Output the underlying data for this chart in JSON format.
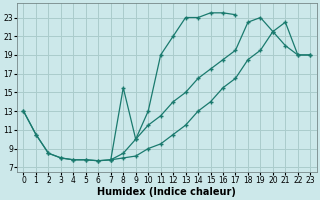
{
  "xlabel": "Humidex (Indice chaleur)",
  "bg_color": "#cce8ea",
  "grid_color": "#aacccc",
  "line_color": "#1a7a6e",
  "xlim": [
    -0.5,
    23.5
  ],
  "ylim": [
    6.5,
    24.5
  ],
  "xticks": [
    0,
    1,
    2,
    3,
    4,
    5,
    6,
    7,
    8,
    9,
    10,
    11,
    12,
    13,
    14,
    15,
    16,
    17,
    18,
    19,
    20,
    21,
    22,
    23
  ],
  "yticks": [
    7,
    9,
    11,
    13,
    15,
    17,
    19,
    21,
    23
  ],
  "line1_x": [
    0,
    1,
    2,
    3,
    4,
    5,
    6,
    7,
    8,
    9,
    10,
    11,
    12,
    13,
    14,
    15,
    16,
    17
  ],
  "line1_y": [
    13,
    10.5,
    8.5,
    8.0,
    7.8,
    7.8,
    7.7,
    7.8,
    8.5,
    10.0,
    13.0,
    19.0,
    21.0,
    23.0,
    23.0,
    23.5,
    23.5,
    23.3
  ],
  "line2_x": [
    0,
    1,
    2,
    3,
    4,
    5,
    6,
    7,
    8,
    9,
    10,
    11,
    12,
    13,
    14,
    15,
    16,
    17,
    18,
    19,
    20,
    21,
    22,
    23
  ],
  "line2_y": [
    13,
    10.5,
    8.5,
    8.0,
    7.8,
    7.8,
    7.7,
    7.8,
    8.0,
    8.2,
    9.0,
    9.5,
    10.5,
    11.5,
    13.0,
    14.0,
    15.5,
    16.5,
    18.5,
    19.5,
    21.5,
    22.5,
    19.0,
    19.0
  ],
  "line3_x": [
    7,
    8,
    9,
    10,
    11,
    12,
    13,
    14,
    15,
    16,
    17,
    18,
    19,
    20,
    21,
    22,
    23
  ],
  "line3_y": [
    7.8,
    15.5,
    10.0,
    11.5,
    12.5,
    14.0,
    15.0,
    16.5,
    17.5,
    18.5,
    19.5,
    22.5,
    23.0,
    21.5,
    20.0,
    19.0,
    19.0
  ],
  "xlabel_fontsize": 7,
  "tick_fontsize": 5.5
}
